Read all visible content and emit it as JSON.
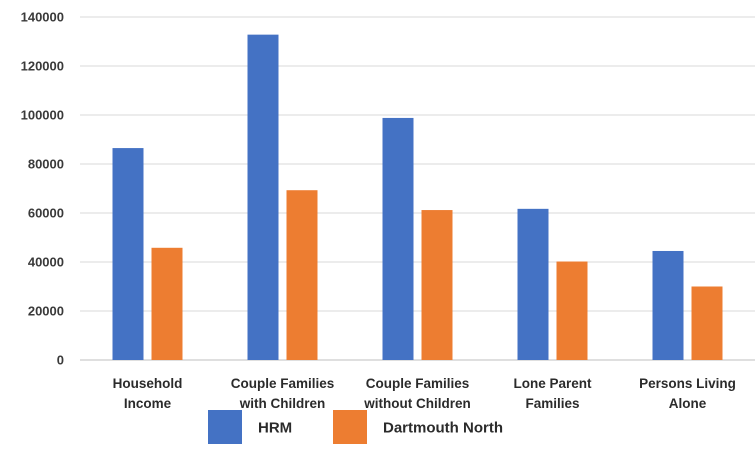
{
  "chart_data": {
    "type": "bar",
    "title": "",
    "xlabel": "",
    "ylabel": "",
    "ylim": [
      0,
      140000
    ],
    "yticks": [
      0,
      20000,
      40000,
      60000,
      80000,
      100000,
      120000,
      140000
    ],
    "grid": true,
    "legend_position": "bottom",
    "categories": [
      [
        "Household",
        "Income"
      ],
      [
        "Couple Families",
        "with Children"
      ],
      [
        "Couple Families",
        "without Children"
      ],
      [
        "Lone Parent",
        "Families"
      ],
      [
        "Persons Living",
        "Alone"
      ]
    ],
    "series": [
      {
        "name": "HRM",
        "color": "#4472C4",
        "values": [
          86500,
          132800,
          98800,
          61700,
          44500
        ]
      },
      {
        "name": "Dartmouth North",
        "color": "#ED7D31",
        "values": [
          45800,
          69300,
          61200,
          40200,
          30000
        ]
      }
    ]
  }
}
